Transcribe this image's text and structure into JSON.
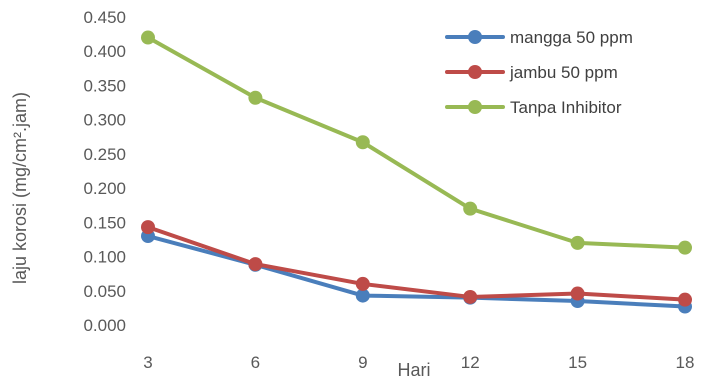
{
  "chart_data": {
    "type": "line",
    "title": "",
    "xlabel": "Hari",
    "ylabel": "laju korosi (mg/cm².jam)",
    "x": [
      3,
      6,
      9,
      12,
      15,
      18
    ],
    "x_tick_labels": [
      "3",
      "6",
      "9",
      "12",
      "15",
      "18"
    ],
    "ylim": [
      0,
      0.45
    ],
    "y_ticks": [
      0,
      0.05,
      0.1,
      0.15,
      0.2,
      0.25,
      0.3,
      0.35,
      0.4,
      0.45
    ],
    "y_tick_labels": [
      "0.000",
      "0.050",
      "0.100",
      "0.150",
      "0.200",
      "0.250",
      "0.300",
      "0.350",
      "0.400",
      "0.450"
    ],
    "grid": false,
    "legend_position": "top-right",
    "series": [
      {
        "name": "mangga 50 ppm",
        "color": "#4a7ebb",
        "values": [
          0.13,
          0.088,
          0.043,
          0.04,
          0.035,
          0.027
        ]
      },
      {
        "name": "jambu 50 ppm",
        "color": "#be4b48",
        "values": [
          0.143,
          0.089,
          0.06,
          0.041,
          0.046,
          0.037
        ]
      },
      {
        "name": "Tanpa Inhibitor",
        "color": "#98b954",
        "values": [
          0.42,
          0.332,
          0.267,
          0.17,
          0.12,
          0.113
        ]
      }
    ]
  }
}
